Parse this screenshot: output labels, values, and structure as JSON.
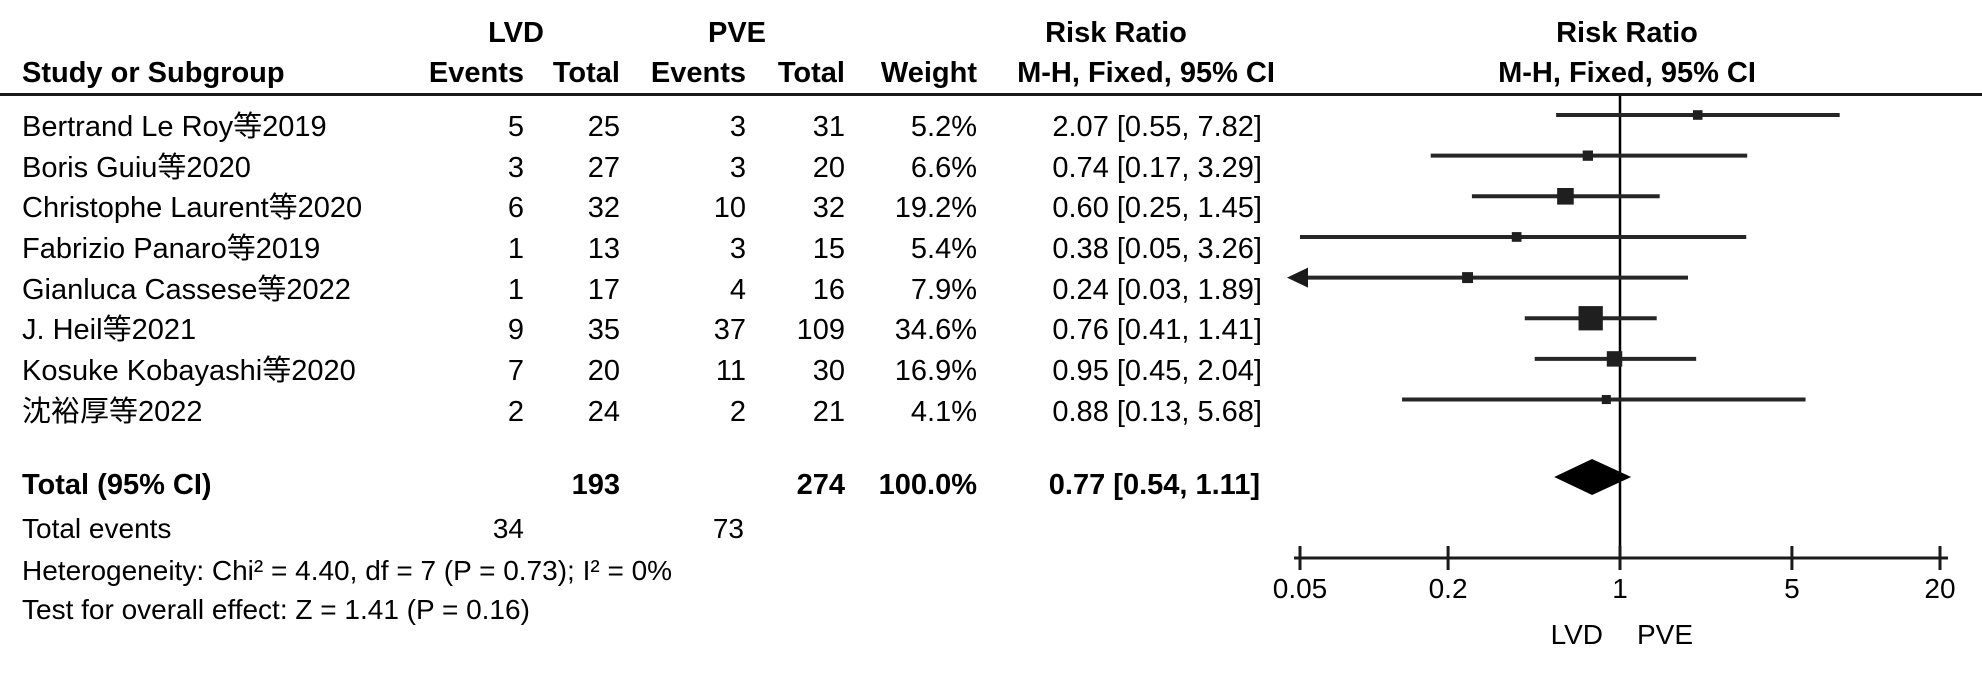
{
  "figure_title": "Forest plot — Risk Ratio, M-H, Fixed, 95% CI",
  "header": {
    "group1": "LVD",
    "group2": "PVE",
    "effect1_title": "Risk Ratio",
    "effect2_title": "Risk Ratio",
    "study_col": "Study or Subgroup",
    "events_col1": "Events",
    "total_col1": "Total",
    "events_col2": "Events",
    "total_col2": "Total",
    "weight_col": "Weight",
    "method_col1": "M-H, Fixed, 95% CI",
    "method_col2": "M-H, Fixed, 95% CI"
  },
  "chart_data": {
    "type": "forest",
    "effect_measure": "Risk Ratio",
    "method": "M-H, Fixed, 95% CI",
    "studies": [
      {
        "name": "Bertrand Le Roy等2019",
        "events1": "5",
        "total1": "25",
        "events2": "3",
        "total2": "31",
        "weight": "5.2%",
        "weight_num": 5.2,
        "rr": 2.07,
        "ci_low": 0.55,
        "ci_high": 7.82,
        "ci_text": "2.07 [0.55, 7.82]"
      },
      {
        "name": "Boris Guiu等2020",
        "events1": "3",
        "total1": "27",
        "events2": "3",
        "total2": "20",
        "weight": "6.6%",
        "weight_num": 6.6,
        "rr": 0.74,
        "ci_low": 0.17,
        "ci_high": 3.29,
        "ci_text": "0.74 [0.17, 3.29]"
      },
      {
        "name": "Christophe Laurent等2020",
        "events1": "6",
        "total1": "32",
        "events2": "10",
        "total2": "32",
        "weight": "19.2%",
        "weight_num": 19.2,
        "rr": 0.6,
        "ci_low": 0.25,
        "ci_high": 1.45,
        "ci_text": "0.60 [0.25, 1.45]"
      },
      {
        "name": "Fabrizio Panaro等2019",
        "events1": "1",
        "total1": "13",
        "events2": "3",
        "total2": "15",
        "weight": "5.4%",
        "weight_num": 5.4,
        "rr": 0.38,
        "ci_low": 0.05,
        "ci_high": 3.26,
        "ci_text": "0.38 [0.05, 3.26]"
      },
      {
        "name": "Gianluca Cassese等2022",
        "events1": "1",
        "total1": "17",
        "events2": "4",
        "total2": "16",
        "weight": "7.9%",
        "weight_num": 7.9,
        "rr": 0.24,
        "ci_low": 0.03,
        "ci_high": 1.89,
        "ci_text": "0.24 [0.03, 1.89]"
      },
      {
        "name": "J. Heil等2021",
        "events1": "9",
        "total1": "35",
        "events2": "37",
        "total2": "109",
        "weight": "34.6%",
        "weight_num": 34.6,
        "rr": 0.76,
        "ci_low": 0.41,
        "ci_high": 1.41,
        "ci_text": "0.76 [0.41, 1.41]"
      },
      {
        "name": "Kosuke Kobayashi等2020",
        "events1": "7",
        "total1": "20",
        "events2": "11",
        "total2": "30",
        "weight": "16.9%",
        "weight_num": 16.9,
        "rr": 0.95,
        "ci_low": 0.45,
        "ci_high": 2.04,
        "ci_text": "0.95 [0.45, 2.04]"
      },
      {
        "name": "沈裕厚等2022",
        "events1": "2",
        "total1": "24",
        "events2": "2",
        "total2": "21",
        "weight": "4.1%",
        "weight_num": 4.1,
        "rr": 0.88,
        "ci_low": 0.13,
        "ci_high": 5.68,
        "ci_text": "0.88 [0.13, 5.68]"
      }
    ],
    "total": {
      "label": "Total (95% CI)",
      "total1": "193",
      "total2": "274",
      "weight": "100.0%",
      "rr": 0.77,
      "ci_low": 0.54,
      "ci_high": 1.11,
      "ci_text": "0.77 [0.54, 1.11]"
    },
    "total_events": {
      "label": "Total events",
      "events1": "34",
      "events2": "73"
    },
    "heterogeneity": "Heterogeneity: Chi² = 4.40, df = 7 (P = 0.73); I² = 0%",
    "overall_effect": "Test for overall effect: Z = 1.41 (P = 0.16)",
    "axis": {
      "scale": "log",
      "min": 0.05,
      "max": 20,
      "ticks": [
        0.05,
        0.2,
        1,
        5,
        20
      ],
      "tick_labels": [
        "0.05",
        "0.2",
        "1",
        "5",
        "20"
      ],
      "null_line": 1
    },
    "axis_labels": {
      "left": "LVD",
      "right": "PVE"
    }
  }
}
